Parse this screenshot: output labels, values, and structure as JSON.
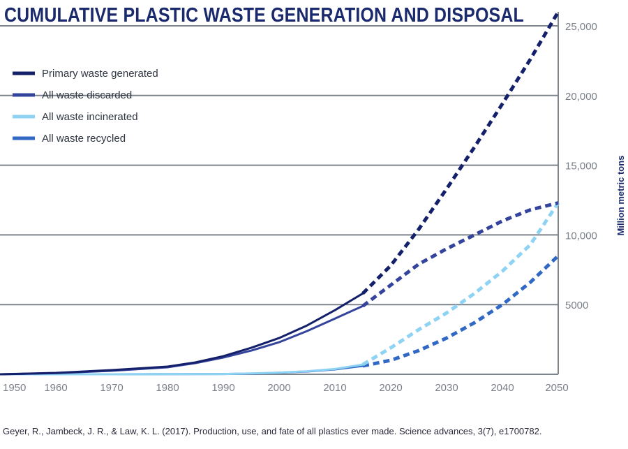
{
  "colors": {
    "title": "#1a2a6c",
    "grid": "#7d848c",
    "axis_label": "#1a2a6c",
    "citation": "#2a2a3a"
  },
  "chart_data": {
    "type": "line",
    "title": "CUMULATIVE PLASTIC WASTE GENERATION AND DISPOSAL",
    "xlabel": "",
    "ylabel": "Million metric tons",
    "xlim": [
      1950,
      2050
    ],
    "ylim": [
      0,
      26000
    ],
    "x_ticks": [
      1950,
      1960,
      1970,
      1980,
      1990,
      2000,
      2010,
      2020,
      2030,
      2040,
      2050
    ],
    "x_tick_labels": [
      "1950",
      "1960",
      "1970",
      "1980",
      "1990",
      "2000",
      "2010",
      "2020",
      "2030",
      "2040",
      "2050"
    ],
    "y_ticks": [
      5000,
      10000,
      15000,
      20000,
      25000
    ],
    "y_tick_labels": [
      "5000",
      "10,000",
      "15,000",
      "20,000",
      "25,000"
    ],
    "grid": true,
    "legend_position": "top-left",
    "projection_start": 2015,
    "series": [
      {
        "name": "Primary waste generated",
        "color": "#14206a",
        "x": [
          1950,
          1960,
          1970,
          1980,
          1985,
          1990,
          1995,
          2000,
          2005,
          2010,
          2015,
          2020,
          2025,
          2030,
          2035,
          2040,
          2045,
          2050
        ],
        "values": [
          0,
          100,
          300,
          550,
          850,
          1300,
          1900,
          2600,
          3500,
          4600,
          5800,
          7800,
          10400,
          13300,
          16300,
          19400,
          22600,
          26000
        ]
      },
      {
        "name": "All waste discarded",
        "color": "#34449c",
        "x": [
          1950,
          1960,
          1970,
          1980,
          1985,
          1990,
          1995,
          2000,
          2005,
          2010,
          2015,
          2020,
          2025,
          2030,
          2035,
          2040,
          2045,
          2050
        ],
        "values": [
          0,
          80,
          250,
          500,
          800,
          1200,
          1700,
          2300,
          3100,
          4000,
          4900,
          6400,
          7900,
          9000,
          10000,
          11000,
          11800,
          12300
        ]
      },
      {
        "name": "All waste incinerated",
        "color": "#8fd3f4",
        "x": [
          1950,
          1960,
          1970,
          1980,
          1990,
          1995,
          2000,
          2005,
          2010,
          2015,
          2020,
          2025,
          2030,
          2035,
          2040,
          2045,
          2050
        ],
        "values": [
          0,
          0,
          0,
          10,
          20,
          60,
          120,
          220,
          380,
          700,
          1900,
          3200,
          4400,
          5800,
          7400,
          9300,
          12300
        ]
      },
      {
        "name": "All waste recycled",
        "color": "#3068c4",
        "x": [
          1950,
          1960,
          1970,
          1980,
          1990,
          1995,
          2000,
          2005,
          2010,
          2015,
          2020,
          2025,
          2030,
          2035,
          2040,
          2045,
          2050
        ],
        "values": [
          0,
          0,
          0,
          10,
          20,
          50,
          110,
          200,
          350,
          600,
          1000,
          1700,
          2600,
          3700,
          5000,
          6600,
          8500
        ]
      }
    ]
  },
  "citation": "Geyer, R., Jambeck, J. R., & Law, K. L. (2017). Production, use, and fate of all plastics ever made. Science advances, 3(7), e1700782."
}
